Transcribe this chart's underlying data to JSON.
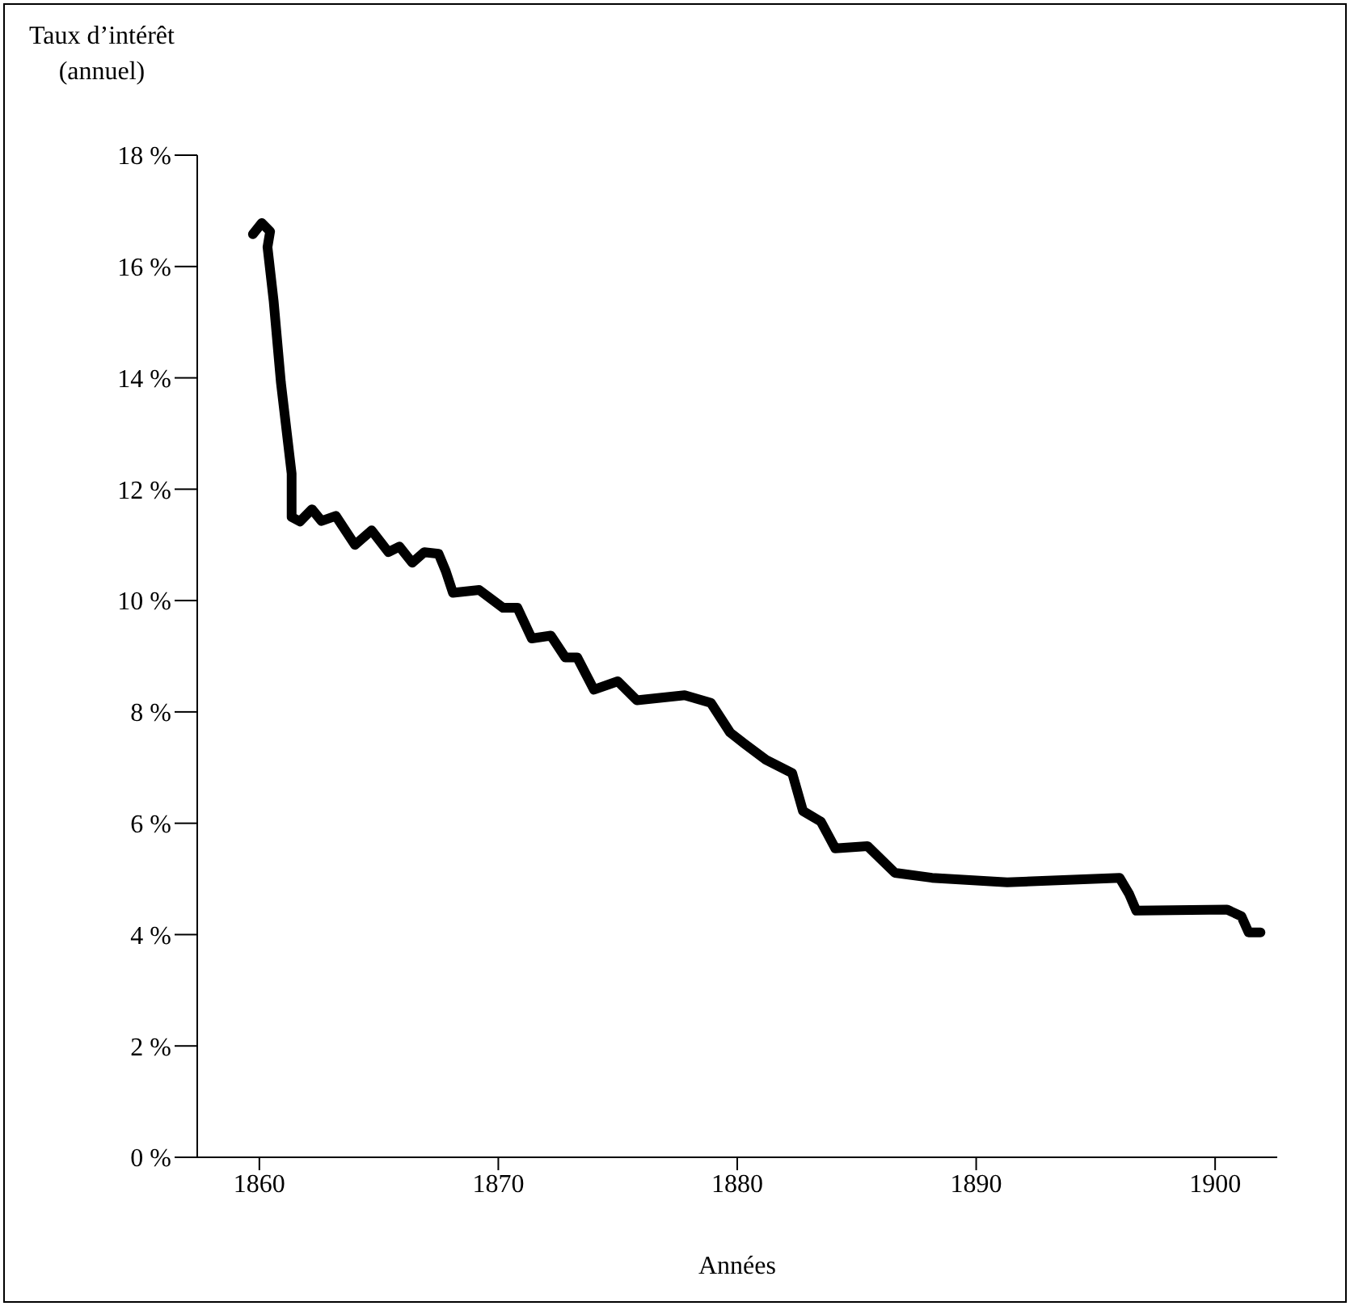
{
  "chart_data": {
    "type": "line",
    "xlabel": "Années",
    "ylabel": "Taux d’intérêt\n(annuel)",
    "x": [
      1859.73,
      1860.1,
      1860.45,
      1860.34,
      1860.6,
      1860.9,
      1861.35,
      1861.35,
      1861.7,
      1862.2,
      1862.6,
      1863.2,
      1864.0,
      1864.7,
      1865.4,
      1865.86,
      1866.4,
      1866.9,
      1867.5,
      1867.8,
      1868.1,
      1869.2,
      1870.2,
      1870.8,
      1871.4,
      1872.2,
      1872.8,
      1873.3,
      1874.0,
      1875.0,
      1875.8,
      1877.8,
      1878.9,
      1879.7,
      1880.3,
      1881.2,
      1882.3,
      1882.75,
      1883.5,
      1884.1,
      1885.45,
      1886.6,
      1888.15,
      1891.3,
      1896.0,
      1896.4,
      1896.7,
      1900.5,
      1901.1,
      1901.4,
      1901.9
    ],
    "series": [
      {
        "color": "#000000",
        "values": [
          16.58,
          16.78,
          16.63,
          16.35,
          15.37,
          13.92,
          12.28,
          11.5,
          11.42,
          11.64,
          11.43,
          11.52,
          11.0,
          11.26,
          10.87,
          10.97,
          10.68,
          10.87,
          10.84,
          10.53,
          10.14,
          10.19,
          9.87,
          9.87,
          9.32,
          9.37,
          8.98,
          8.98,
          8.4,
          8.55,
          8.21,
          8.3,
          8.16,
          7.63,
          7.43,
          7.14,
          6.9,
          6.22,
          6.03,
          5.55,
          5.59,
          5.11,
          5.02,
          4.94,
          5.02,
          4.73,
          4.43,
          4.45,
          4.33,
          4.04,
          4.04
        ]
      }
    ],
    "xlim": [
      1857.4,
      1902.6
    ],
    "xticks": [
      1860,
      1870,
      1880,
      1890,
      1900
    ],
    "ylim": [
      0,
      18
    ],
    "yticks": [
      {
        "value": 0,
        "label": "0 %"
      },
      {
        "value": 2,
        "label": "2 %"
      },
      {
        "value": 4,
        "label": "4 %"
      },
      {
        "value": 6,
        "label": "6 %"
      },
      {
        "value": 8,
        "label": "8 %"
      },
      {
        "value": 10,
        "label": "10 %"
      },
      {
        "value": 12,
        "label": "12 %"
      },
      {
        "value": 14,
        "label": "14 %"
      },
      {
        "value": 16,
        "label": "16 %"
      },
      {
        "value": 18,
        "label": "18 %"
      }
    ],
    "grid": false,
    "legend": false,
    "marker": "none",
    "line_style": "solid"
  }
}
